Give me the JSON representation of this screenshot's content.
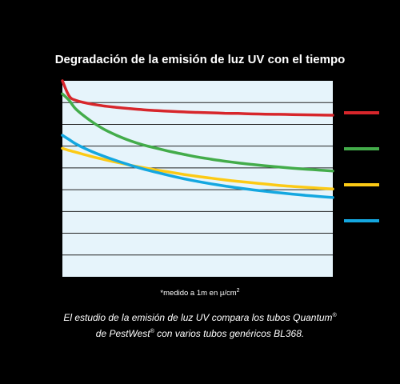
{
  "chart_data": {
    "type": "line",
    "title": "Degradación de la emisión de luz UV con el tiempo",
    "xlabel": "",
    "ylabel": "",
    "x": [
      0,
      0.5,
      1,
      2,
      3,
      4,
      5,
      6,
      7,
      8,
      9,
      10,
      11,
      12,
      13,
      14,
      15,
      16,
      17,
      18,
      19,
      20
    ],
    "xlim": [
      0,
      20
    ],
    "ylim": [
      0,
      9
    ],
    "grid": true,
    "legend": "right",
    "series": [
      {
        "color": "#d7262b",
        "values": [
          9.0,
          8.3,
          8.1,
          7.95,
          7.85,
          7.78,
          7.72,
          7.67,
          7.63,
          7.6,
          7.57,
          7.55,
          7.53,
          7.51,
          7.5,
          7.48,
          7.47,
          7.46,
          7.45,
          7.44,
          7.43,
          7.42
        ]
      },
      {
        "color": "#43ac4a",
        "values": [
          8.4,
          8.1,
          7.7,
          7.2,
          6.8,
          6.5,
          6.25,
          6.05,
          5.9,
          5.75,
          5.62,
          5.5,
          5.4,
          5.31,
          5.23,
          5.16,
          5.1,
          5.04,
          4.99,
          4.94,
          4.9,
          4.86
        ]
      },
      {
        "color": "#fcca15",
        "values": [
          5.9,
          5.8,
          5.72,
          5.55,
          5.4,
          5.26,
          5.13,
          5.01,
          4.9,
          4.8,
          4.7,
          4.61,
          4.53,
          4.45,
          4.38,
          4.32,
          4.26,
          4.2,
          4.15,
          4.11,
          4.07,
          4.03
        ]
      },
      {
        "color": "#14a7e0",
        "values": [
          6.5,
          6.3,
          6.1,
          5.8,
          5.55,
          5.33,
          5.13,
          4.95,
          4.79,
          4.64,
          4.5,
          4.38,
          4.27,
          4.17,
          4.08,
          4.0,
          3.93,
          3.86,
          3.8,
          3.74,
          3.69,
          3.64
        ]
      }
    ]
  },
  "footnote": {
    "text": "*medido a 1m en μ/cm",
    "superscript": "2"
  },
  "caption": {
    "line1": "El estudio de la emisión de luz UV compara los tubos Quantum",
    "line1_mark": "®",
    "line2_a": "de PestWest",
    "line2_mark": "®",
    "line2_b": " con varios tubos genéricos BL368."
  }
}
